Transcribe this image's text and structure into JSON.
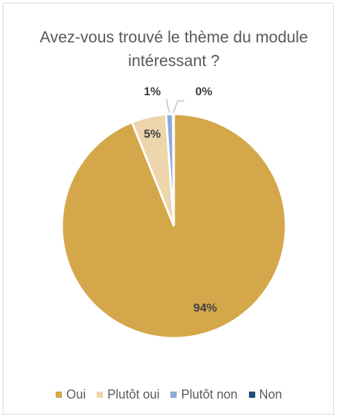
{
  "chart_data": {
    "type": "pie",
    "title": "Avez-vous trouvé le thème du module intéressant ?",
    "categories": [
      "Oui",
      "Plutôt oui",
      "Plutôt non",
      "Non"
    ],
    "values": [
      94,
      5,
      1,
      0
    ],
    "labels": [
      "94%",
      "5%",
      "1%",
      "0%"
    ],
    "colors": [
      "#D4A74A",
      "#EDD6AB",
      "#8EAADB",
      "#1F4E79"
    ],
    "legend_position": "bottom"
  }
}
